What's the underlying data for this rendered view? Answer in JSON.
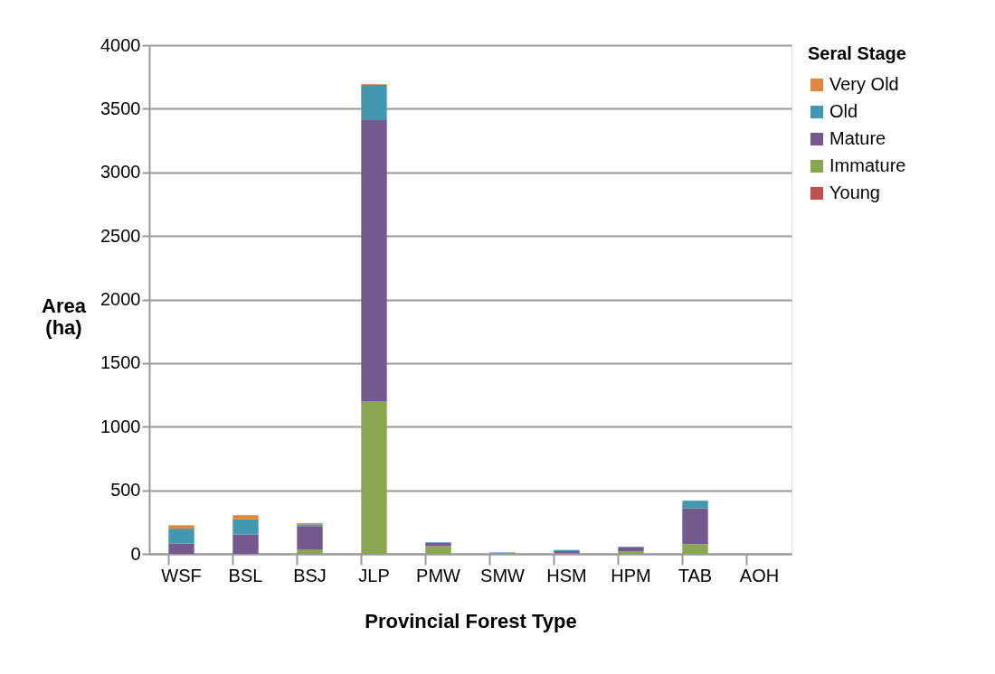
{
  "chart_data": {
    "type": "bar",
    "stacked": true,
    "xlabel": "Provincial Forest Type",
    "ylabel": "Area (ha)",
    "legend_title": "Seral Stage",
    "categories": [
      "WSF",
      "BSL",
      "BSJ",
      "JLP",
      "PMW",
      "SMW",
      "HSM",
      "HPM",
      "TAB",
      "AOH"
    ],
    "series": [
      {
        "name": "Young",
        "color": "#c0504d",
        "values": [
          0,
          0,
          0,
          0,
          0,
          0,
          0,
          0,
          0,
          0
        ]
      },
      {
        "name": "Immature",
        "color": "#8aa64e",
        "values": [
          0,
          0,
          31,
          1200,
          60,
          8,
          5,
          19,
          76,
          0
        ]
      },
      {
        "name": "Mature",
        "color": "#74598f",
        "values": [
          81,
          153,
          187,
          2210,
          26,
          0,
          17,
          34,
          283,
          0
        ]
      },
      {
        "name": "Old",
        "color": "#4198af",
        "values": [
          117,
          119,
          14,
          280,
          5,
          4,
          9,
          4,
          59,
          0
        ]
      },
      {
        "name": "Very Old",
        "color": "#e0863d",
        "values": [
          27,
          32,
          9,
          5,
          0,
          0,
          0,
          0,
          0,
          0
        ]
      }
    ],
    "ylim": [
      0,
      4000
    ],
    "yticks": [
      0,
      500,
      1000,
      1500,
      2000,
      2500,
      3000,
      3500,
      4000
    ],
    "grid": "y",
    "legend": "right"
  }
}
